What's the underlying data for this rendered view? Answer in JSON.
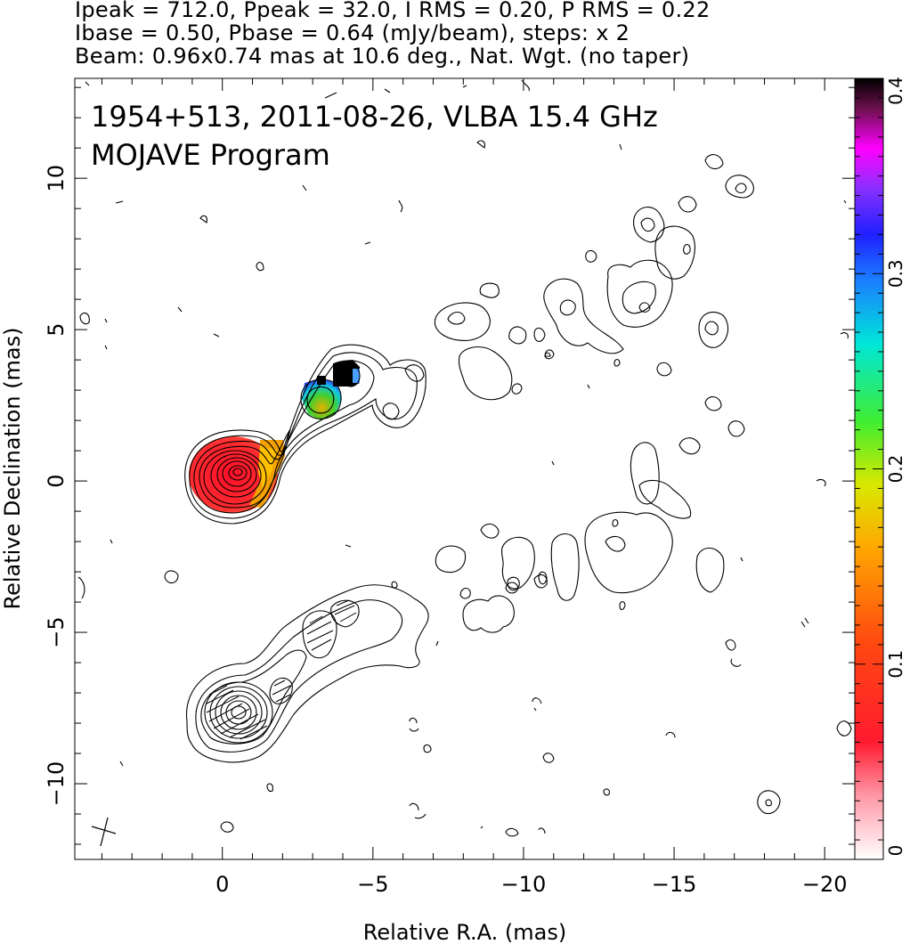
{
  "header": {
    "line1": "Ipeak = 712.0, Ppeak = 32.0, I RMS = 0.20, P RMS = 0.22",
    "line2": "Ibase = 0.50, Pbase = 0.64 (mJy/beam), steps: x 2",
    "line3": "Beam: 0.96x0.74 mas at 10.6 deg., Nat. Wgt. (no taper)"
  },
  "annotation": {
    "line1": "1954+513, 2011-08-26, VLBA 15.4 GHz",
    "line2": "MOJAVE Program"
  },
  "chart_data": {
    "type": "contour",
    "title": "",
    "xlabel": "Relative R.A. (mas)",
    "ylabel": "Relative Declination (mas)",
    "xlim": [
      4.9,
      -21.0
    ],
    "ylim": [
      -12.5,
      13.3
    ],
    "x_ticks": [
      0,
      -5,
      -10,
      -15,
      -20
    ],
    "x_tick_labels": [
      "0",
      "−5",
      "−10",
      "−15",
      "−20"
    ],
    "y_ticks": [
      10,
      5,
      0,
      -5,
      -10
    ],
    "y_tick_labels": [
      "10",
      "5",
      "0",
      "−5",
      "−10"
    ],
    "colorbar": {
      "min": 0,
      "max": 0.4,
      "ticks": [
        0,
        0.1,
        0.2,
        0.3,
        0.4
      ],
      "tick_labels": [
        "0",
        "0.1",
        "0.2",
        "0.3",
        "0.4"
      ]
    },
    "maps": [
      {
        "name": "polarization",
        "center": [
          -0.3,
          0.2
        ]
      },
      {
        "name": "stokes-i",
        "center": [
          -0.3,
          -7.8
        ]
      }
    ],
    "beam_mas": [
      0.96,
      0.74
    ],
    "beam_pa_deg": 10.6
  }
}
